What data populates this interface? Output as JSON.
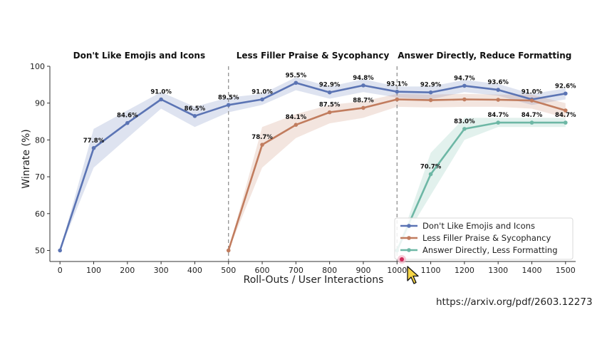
{
  "source_url": "https://arxiv.org/pdf/2603.12273",
  "chart_data": {
    "type": "line",
    "xlabel": "Roll-Outs / User Interactions",
    "ylabel": "Winrate (%)",
    "xlim": [
      -30,
      1530
    ],
    "ylim": [
      47,
      100
    ],
    "x_ticks": [
      0,
      100,
      200,
      300,
      400,
      500,
      600,
      700,
      800,
      900,
      1000,
      1100,
      1200,
      1300,
      1400,
      1500
    ],
    "y_ticks": [
      50,
      60,
      70,
      80,
      90,
      100
    ],
    "grid": false,
    "legend_position": "bottom-right",
    "phase_dividers": [
      500,
      1000
    ],
    "sections": [
      {
        "title": "Don't Like Emojis and Icons",
        "x_center": 235
      },
      {
        "title": "Less Filler Praise & Sycophancy",
        "x_center": 750
      },
      {
        "title": "Answer Directly, Reduce Formatting",
        "x_center": 1260
      }
    ],
    "series": [
      {
        "name": "Don't Like Emojis and Icons",
        "color": "#5b74b4",
        "x": [
          0,
          100,
          200,
          300,
          400,
          500,
          600,
          700,
          800,
          900,
          1000,
          1100,
          1200,
          1300,
          1400,
          1500
        ],
        "y": [
          50,
          77.8,
          84.6,
          91.0,
          86.5,
          89.5,
          91.0,
          95.5,
          92.9,
          94.8,
          93.1,
          92.9,
          94.7,
          93.6,
          91.0,
          92.6
        ],
        "lower": [
          50,
          72.5,
          80.5,
          88.5,
          83.5,
          87.5,
          89.5,
          93.5,
          91.2,
          93.0,
          91.5,
          91.0,
          93.0,
          92.0,
          89.5,
          91.0
        ],
        "upper": [
          50,
          83.0,
          88.0,
          93.0,
          89.0,
          91.5,
          92.5,
          97.0,
          94.5,
          96.5,
          94.5,
          94.5,
          96.3,
          95.2,
          92.5,
          94.0
        ],
        "labels": [
          "",
          "77.8%",
          "84.6%",
          "91.0%",
          "86.5%",
          "89.5%",
          "91.0%",
          "95.5%",
          "92.9%",
          "94.8%",
          "93.1%",
          "92.9%",
          "94.7%",
          "93.6%",
          "91.0%",
          "92.6%"
        ]
      },
      {
        "name": "Less Filler Praise & Sycophancy",
        "color": "#c17c5e",
        "x": [
          500,
          600,
          700,
          800,
          900,
          1000,
          1100,
          1200,
          1300,
          1400,
          1500
        ],
        "y": [
          50,
          78.7,
          84.1,
          87.5,
          88.7,
          91.0,
          90.8,
          91.0,
          90.9,
          90.7,
          88.0
        ],
        "lower": [
          50,
          72.5,
          80.5,
          84.5,
          86.0,
          89.0,
          88.8,
          89.0,
          89.0,
          88.5,
          86.0
        ],
        "upper": [
          50,
          83.5,
          87.0,
          89.5,
          90.5,
          92.5,
          92.3,
          92.5,
          92.3,
          92.3,
          90.0
        ],
        "labels": [
          "",
          "78.7%",
          "84.1%",
          "87.5%",
          "88.7%",
          "",
          "",
          "",
          "",
          "",
          ""
        ]
      },
      {
        "name": "Answer Directly, Less Formatting",
        "color": "#6db7a5",
        "x": [
          1000,
          1100,
          1200,
          1300,
          1400,
          1500
        ],
        "y": [
          50,
          70.7,
          83.0,
          84.7,
          84.7,
          84.7
        ],
        "lower": [
          50,
          65.0,
          80.0,
          83.5,
          83.5,
          83.5
        ],
        "upper": [
          50,
          76.5,
          86.0,
          86.0,
          86.0,
          86.0
        ],
        "labels": [
          "",
          "70.7%",
          "83.0%",
          "84.7%",
          "84.7%",
          "84.7%"
        ]
      }
    ]
  }
}
